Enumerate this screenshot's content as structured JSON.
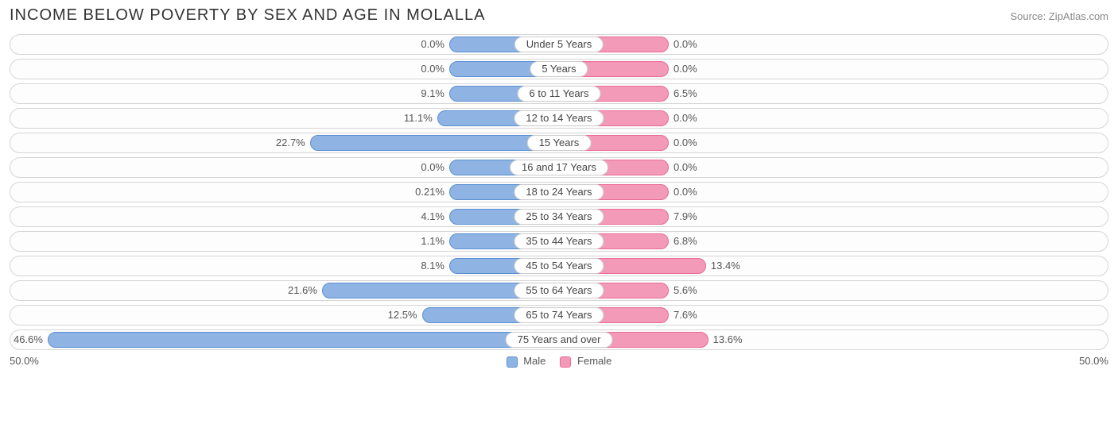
{
  "title": "INCOME BELOW POVERTY BY SEX AND AGE IN MOLALLA",
  "source": "Source: ZipAtlas.com",
  "axis_max": 50.0,
  "axis_left_label": "50.0%",
  "axis_right_label": "50.0%",
  "colors": {
    "male_fill": "#8fb4e3",
    "male_border": "#5a8fd1",
    "female_fill": "#f39ab8",
    "female_border": "#e96b96",
    "text": "#555555",
    "row_border": "#d5d5d5",
    "background": "#ffffff"
  },
  "min_bar_pct": 10.0,
  "legend": {
    "male": "Male",
    "female": "Female"
  },
  "rows": [
    {
      "label": "Under 5 Years",
      "male": 0.0,
      "female": 0.0,
      "male_txt": "0.0%",
      "female_txt": "0.0%"
    },
    {
      "label": "5 Years",
      "male": 0.0,
      "female": 0.0,
      "male_txt": "0.0%",
      "female_txt": "0.0%"
    },
    {
      "label": "6 to 11 Years",
      "male": 9.1,
      "female": 6.5,
      "male_txt": "9.1%",
      "female_txt": "6.5%"
    },
    {
      "label": "12 to 14 Years",
      "male": 11.1,
      "female": 0.0,
      "male_txt": "11.1%",
      "female_txt": "0.0%"
    },
    {
      "label": "15 Years",
      "male": 22.7,
      "female": 0.0,
      "male_txt": "22.7%",
      "female_txt": "0.0%"
    },
    {
      "label": "16 and 17 Years",
      "male": 0.0,
      "female": 0.0,
      "male_txt": "0.0%",
      "female_txt": "0.0%"
    },
    {
      "label": "18 to 24 Years",
      "male": 0.21,
      "female": 0.0,
      "male_txt": "0.21%",
      "female_txt": "0.0%"
    },
    {
      "label": "25 to 34 Years",
      "male": 4.1,
      "female": 7.9,
      "male_txt": "4.1%",
      "female_txt": "7.9%"
    },
    {
      "label": "35 to 44 Years",
      "male": 1.1,
      "female": 6.8,
      "male_txt": "1.1%",
      "female_txt": "6.8%"
    },
    {
      "label": "45 to 54 Years",
      "male": 8.1,
      "female": 13.4,
      "male_txt": "8.1%",
      "female_txt": "13.4%"
    },
    {
      "label": "55 to 64 Years",
      "male": 21.6,
      "female": 5.6,
      "male_txt": "21.6%",
      "female_txt": "5.6%"
    },
    {
      "label": "65 to 74 Years",
      "male": 12.5,
      "female": 7.6,
      "male_txt": "12.5%",
      "female_txt": "7.6%"
    },
    {
      "label": "75 Years and over",
      "male": 46.6,
      "female": 13.6,
      "male_txt": "46.6%",
      "female_txt": "13.6%"
    }
  ]
}
